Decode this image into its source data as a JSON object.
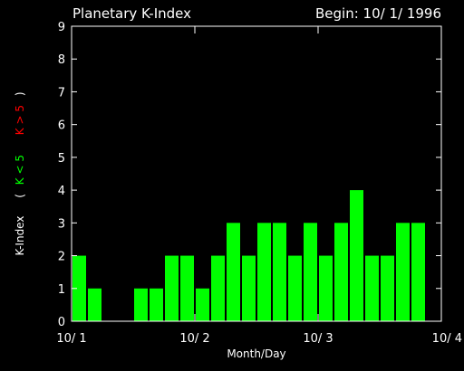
{
  "chart_data": {
    "type": "bar",
    "title": "Planetary K-Index",
    "subtitle": "Begin: 10/ 1/ 1996",
    "xlabel": "Month/Day",
    "ylabel_parts": [
      "K-Index",
      "(",
      "K < 5",
      "K > 5",
      ")"
    ],
    "ylim": [
      0,
      9
    ],
    "y_ticks": [
      "0",
      "1",
      "2",
      "3",
      "4",
      "5",
      "6",
      "7",
      "8",
      "9"
    ],
    "x_range": [
      0,
      24
    ],
    "x_ticks": [
      {
        "x": 0,
        "label": "10/ 1"
      },
      {
        "x": 8,
        "label": "10/ 2"
      },
      {
        "x": 16,
        "label": "10/ 3"
      },
      {
        "x": 24,
        "label": "10/ 4"
      }
    ],
    "values": [
      2,
      1,
      0,
      0,
      1,
      1,
      2,
      2,
      1,
      2,
      3,
      2,
      3,
      3,
      2,
      3,
      2,
      3,
      4,
      2,
      2,
      3,
      3,
      0
    ],
    "threshold": 5,
    "colors": {
      "low": "#00ff00",
      "high": "#ff0000",
      "axis": "#ffffff",
      "background": "#000000"
    }
  }
}
